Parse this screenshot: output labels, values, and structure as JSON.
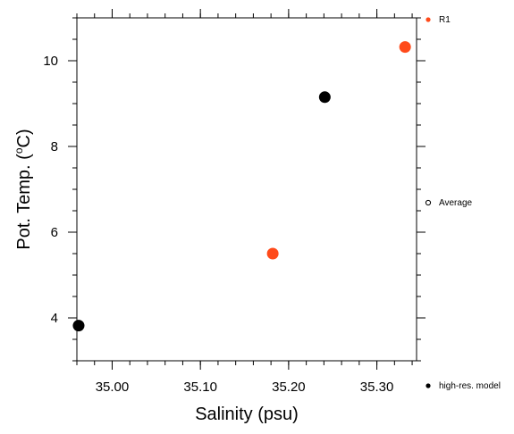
{
  "chart_data": {
    "type": "scatter",
    "xlabel": "Salinity (psu)",
    "ylabel_main": "Pot. Temp. (",
    "ylabel_sup": "o",
    "ylabel_end": "C)",
    "xlim": [
      34.96,
      35.345
    ],
    "ylim": [
      3.0,
      11.0
    ],
    "x_ticks": [
      35.0,
      35.1,
      35.2,
      35.3
    ],
    "x_tick_labels": [
      "35.00",
      "35.10",
      "35.20",
      "35.30"
    ],
    "y_ticks": [
      4,
      6,
      8,
      10
    ],
    "y_tick_labels": [
      "4",
      "6",
      "8",
      "10"
    ],
    "x_minor_step": 0.02,
    "y_minor_step": 0.5,
    "grid": false,
    "series": [
      {
        "name": "R1",
        "color": "#ff4a1a",
        "points": [
          {
            "x": 35.182,
            "y": 5.5
          },
          {
            "x": 35.332,
            "y": 10.32
          }
        ]
      },
      {
        "name": "high-res. model",
        "color": "#000000",
        "points": [
          {
            "x": 34.962,
            "y": 3.82
          },
          {
            "x": 35.241,
            "y": 9.15
          }
        ]
      }
    ],
    "legend": [
      {
        "label": "R1",
        "marker": "filled-circle",
        "color": "#ff4a1a"
      },
      {
        "label": "Average",
        "marker": "open-circle",
        "color": "#000000"
      },
      {
        "label": "high-res. model",
        "marker": "filled-circle",
        "color": "#000000"
      }
    ],
    "legend_position": "right"
  }
}
